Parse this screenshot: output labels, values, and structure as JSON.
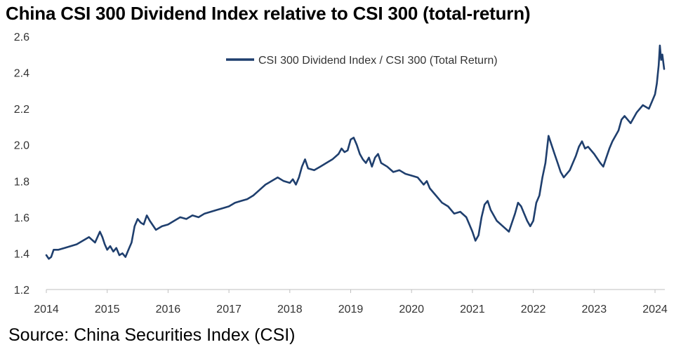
{
  "header": {
    "title": "China CSI 300 Dividend Index relative to CSI 300 (total-return)"
  },
  "footer": {
    "source": "Source: China Securities Index (CSI)"
  },
  "colors": {
    "series": "#1f3f6e",
    "axis": "#bfbfbf",
    "text": "#333333"
  },
  "chart_data": {
    "type": "line",
    "title": "China CSI 300 Dividend Index relative to CSI 300 (total-return)",
    "xlabel": "",
    "ylabel": "",
    "xlim": [
      2014,
      2024.15
    ],
    "ylim": [
      1.2,
      2.6
    ],
    "x_ticks": [
      "2014",
      "2015",
      "2016",
      "2017",
      "2018",
      "2019",
      "2020",
      "2021",
      "2022",
      "2023",
      "2024"
    ],
    "y_ticks": [
      "1.2",
      "1.4",
      "1.6",
      "1.8",
      "2.0",
      "2.2",
      "2.4",
      "2.6"
    ],
    "grid": false,
    "legend": "top-center",
    "series": [
      {
        "name": "CSI 300 Dividend Index / CSI 300 (Total Return)",
        "points": [
          [
            2014.0,
            1.39
          ],
          [
            2014.04,
            1.37
          ],
          [
            2014.08,
            1.38
          ],
          [
            2014.12,
            1.42
          ],
          [
            2014.2,
            1.42
          ],
          [
            2014.3,
            1.43
          ],
          [
            2014.4,
            1.44
          ],
          [
            2014.5,
            1.45
          ],
          [
            2014.6,
            1.47
          ],
          [
            2014.7,
            1.49
          ],
          [
            2014.8,
            1.46
          ],
          [
            2014.88,
            1.52
          ],
          [
            2014.92,
            1.49
          ],
          [
            2014.96,
            1.45
          ],
          [
            2015.0,
            1.42
          ],
          [
            2015.05,
            1.44
          ],
          [
            2015.1,
            1.41
          ],
          [
            2015.15,
            1.43
          ],
          [
            2015.2,
            1.39
          ],
          [
            2015.25,
            1.4
          ],
          [
            2015.3,
            1.38
          ],
          [
            2015.35,
            1.42
          ],
          [
            2015.4,
            1.46
          ],
          [
            2015.45,
            1.55
          ],
          [
            2015.5,
            1.59
          ],
          [
            2015.55,
            1.57
          ],
          [
            2015.6,
            1.56
          ],
          [
            2015.65,
            1.61
          ],
          [
            2015.7,
            1.58
          ],
          [
            2015.8,
            1.53
          ],
          [
            2015.9,
            1.55
          ],
          [
            2016.0,
            1.56
          ],
          [
            2016.1,
            1.58
          ],
          [
            2016.2,
            1.6
          ],
          [
            2016.3,
            1.59
          ],
          [
            2016.4,
            1.61
          ],
          [
            2016.5,
            1.6
          ],
          [
            2016.6,
            1.62
          ],
          [
            2016.7,
            1.63
          ],
          [
            2016.8,
            1.64
          ],
          [
            2016.9,
            1.65
          ],
          [
            2017.0,
            1.66
          ],
          [
            2017.1,
            1.68
          ],
          [
            2017.2,
            1.69
          ],
          [
            2017.3,
            1.7
          ],
          [
            2017.4,
            1.72
          ],
          [
            2017.5,
            1.75
          ],
          [
            2017.6,
            1.78
          ],
          [
            2017.7,
            1.8
          ],
          [
            2017.8,
            1.82
          ],
          [
            2017.9,
            1.8
          ],
          [
            2018.0,
            1.79
          ],
          [
            2018.05,
            1.81
          ],
          [
            2018.1,
            1.78
          ],
          [
            2018.15,
            1.82
          ],
          [
            2018.2,
            1.88
          ],
          [
            2018.25,
            1.92
          ],
          [
            2018.3,
            1.87
          ],
          [
            2018.4,
            1.86
          ],
          [
            2018.5,
            1.88
          ],
          [
            2018.6,
            1.9
          ],
          [
            2018.7,
            1.92
          ],
          [
            2018.8,
            1.95
          ],
          [
            2018.85,
            1.98
          ],
          [
            2018.9,
            1.96
          ],
          [
            2018.95,
            1.97
          ],
          [
            2019.0,
            2.03
          ],
          [
            2019.05,
            2.04
          ],
          [
            2019.1,
            2.0
          ],
          [
            2019.15,
            1.95
          ],
          [
            2019.2,
            1.92
          ],
          [
            2019.25,
            1.9
          ],
          [
            2019.3,
            1.93
          ],
          [
            2019.35,
            1.88
          ],
          [
            2019.4,
            1.93
          ],
          [
            2019.45,
            1.95
          ],
          [
            2019.5,
            1.9
          ],
          [
            2019.6,
            1.88
          ],
          [
            2019.7,
            1.85
          ],
          [
            2019.8,
            1.86
          ],
          [
            2019.9,
            1.84
          ],
          [
            2020.0,
            1.83
          ],
          [
            2020.1,
            1.82
          ],
          [
            2020.2,
            1.78
          ],
          [
            2020.25,
            1.8
          ],
          [
            2020.3,
            1.76
          ],
          [
            2020.4,
            1.72
          ],
          [
            2020.5,
            1.68
          ],
          [
            2020.6,
            1.66
          ],
          [
            2020.7,
            1.62
          ],
          [
            2020.8,
            1.63
          ],
          [
            2020.9,
            1.6
          ],
          [
            2020.95,
            1.56
          ],
          [
            2021.0,
            1.52
          ],
          [
            2021.05,
            1.47
          ],
          [
            2021.1,
            1.5
          ],
          [
            2021.15,
            1.6
          ],
          [
            2021.2,
            1.67
          ],
          [
            2021.25,
            1.69
          ],
          [
            2021.3,
            1.64
          ],
          [
            2021.4,
            1.58
          ],
          [
            2021.5,
            1.55
          ],
          [
            2021.6,
            1.52
          ],
          [
            2021.7,
            1.62
          ],
          [
            2021.75,
            1.68
          ],
          [
            2021.8,
            1.66
          ],
          [
            2021.85,
            1.62
          ],
          [
            2021.9,
            1.58
          ],
          [
            2021.95,
            1.55
          ],
          [
            2022.0,
            1.58
          ],
          [
            2022.05,
            1.68
          ],
          [
            2022.1,
            1.72
          ],
          [
            2022.15,
            1.82
          ],
          [
            2022.2,
            1.9
          ],
          [
            2022.25,
            2.05
          ],
          [
            2022.3,
            2.0
          ],
          [
            2022.35,
            1.95
          ],
          [
            2022.4,
            1.9
          ],
          [
            2022.45,
            1.85
          ],
          [
            2022.5,
            1.82
          ],
          [
            2022.6,
            1.86
          ],
          [
            2022.7,
            1.94
          ],
          [
            2022.75,
            1.99
          ],
          [
            2022.8,
            2.02
          ],
          [
            2022.85,
            1.98
          ],
          [
            2022.9,
            1.99
          ],
          [
            2023.0,
            1.95
          ],
          [
            2023.1,
            1.9
          ],
          [
            2023.15,
            1.88
          ],
          [
            2023.2,
            1.93
          ],
          [
            2023.25,
            1.98
          ],
          [
            2023.3,
            2.02
          ],
          [
            2023.4,
            2.08
          ],
          [
            2023.45,
            2.14
          ],
          [
            2023.5,
            2.16
          ],
          [
            2023.6,
            2.12
          ],
          [
            2023.7,
            2.18
          ],
          [
            2023.8,
            2.22
          ],
          [
            2023.9,
            2.2
          ],
          [
            2023.95,
            2.24
          ],
          [
            2024.0,
            2.28
          ],
          [
            2024.03,
            2.34
          ],
          [
            2024.06,
            2.44
          ],
          [
            2024.08,
            2.55
          ],
          [
            2024.1,
            2.47
          ],
          [
            2024.12,
            2.5
          ],
          [
            2024.15,
            2.42
          ]
        ]
      }
    ]
  }
}
